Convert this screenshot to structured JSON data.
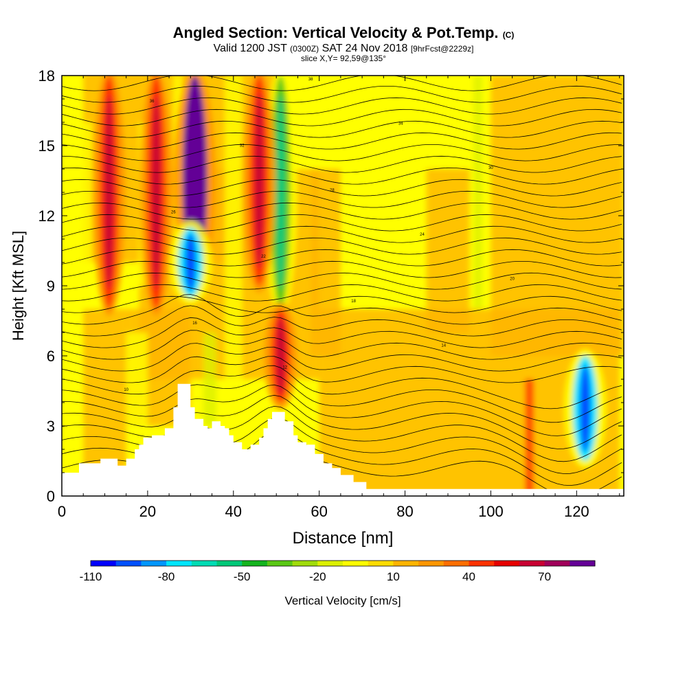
{
  "title": {
    "main": "Angled Section: Vertical Velocity & Pot.Temp.",
    "main_suffix": "(C)",
    "valid_prefix": "Valid 1200 JST",
    "valid_utc": "(0300Z)",
    "valid_date": "SAT 24 Nov 2018",
    "forecast": "[9hrFcst@2229z]",
    "slice": "slice X,Y= 92,59@135°"
  },
  "chart_data": {
    "type": "heatmap",
    "xlabel": "Distance [nm]",
    "ylabel": "Height [Kft MSL]",
    "xlim": [
      0,
      131
    ],
    "ylim": [
      0,
      18
    ],
    "x_ticks": [
      0,
      20,
      40,
      60,
      80,
      100,
      120
    ],
    "y_ticks": [
      0,
      3,
      6,
      9,
      12,
      15,
      18
    ],
    "colorbar": {
      "label": "Vertical Velocity [cm/s]",
      "min": -110,
      "max": 90,
      "step": 10,
      "tick_labels": [
        "-110",
        "-80",
        "-50",
        "-20",
        "10",
        "40",
        "70"
      ],
      "colors": [
        "#0000ff",
        "#0050ff",
        "#0096ff",
        "#00e6ff",
        "#00dcb4",
        "#00c878",
        "#14b41e",
        "#5ac814",
        "#a0dc0a",
        "#dcf000",
        "#ffff00",
        "#ffdc00",
        "#ffb400",
        "#ff9600",
        "#ff6e00",
        "#ff3200",
        "#e60000",
        "#c80032",
        "#a0005a",
        "#640096"
      ]
    },
    "features": [
      {
        "name": "updraft",
        "x": 11,
        "y_range": [
          8,
          18
        ],
        "value": 40
      },
      {
        "name": "updraft",
        "x": 22,
        "y_range": [
          8,
          18
        ],
        "value": 40
      },
      {
        "name": "updraft",
        "x": 31,
        "y_range": [
          9,
          18
        ],
        "value": 80
      },
      {
        "name": "downdraft",
        "x": 30,
        "y_range": [
          8.5,
          11.5
        ],
        "value": -80
      },
      {
        "name": "downdraft",
        "x": 51,
        "y_range": [
          8,
          18
        ],
        "value": -40
      },
      {
        "name": "updraft",
        "x": 51,
        "y_range": [
          4,
          8
        ],
        "value": 40
      },
      {
        "name": "updraft",
        "x": 46,
        "y_range": [
          9,
          18
        ],
        "value": 40
      },
      {
        "name": "downdraft",
        "x": 122,
        "y_range": [
          1.5,
          6
        ],
        "value": -80
      }
    ],
    "isentropes": {
      "unit": "C",
      "labels": [
        "10",
        "12",
        "14",
        "16",
        "18",
        "20",
        "22",
        "24",
        "26",
        "28",
        "30",
        "32",
        "34",
        "36",
        "38"
      ]
    },
    "terrain": [
      [
        0,
        1
      ],
      [
        4,
        1
      ],
      [
        4,
        1.4
      ],
      [
        9,
        1.4
      ],
      [
        9,
        1.6
      ],
      [
        13,
        1.6
      ],
      [
        13,
        1.3
      ],
      [
        15,
        1.3
      ],
      [
        15,
        1.6
      ],
      [
        17,
        1.6
      ],
      [
        17,
        2
      ],
      [
        18,
        2
      ],
      [
        18,
        2.2
      ],
      [
        19,
        2.2
      ],
      [
        19,
        2.5
      ],
      [
        21,
        2.5
      ],
      [
        21,
        2.6
      ],
      [
        24,
        2.6
      ],
      [
        24,
        2.9
      ],
      [
        26,
        2.9
      ],
      [
        26,
        3.8
      ],
      [
        27,
        3.8
      ],
      [
        27,
        4.8
      ],
      [
        30,
        4.8
      ],
      [
        30,
        3.8
      ],
      [
        31,
        3.8
      ],
      [
        31,
        3.3
      ],
      [
        33,
        3.3
      ],
      [
        33,
        3.0
      ],
      [
        34,
        3.0
      ],
      [
        34,
        2.9
      ],
      [
        35,
        2.9
      ],
      [
        35,
        3.2
      ],
      [
        37,
        3.2
      ],
      [
        37,
        3.0
      ],
      [
        38,
        3.0
      ],
      [
        38,
        2.9
      ],
      [
        39,
        2.9
      ],
      [
        39,
        2.6
      ],
      [
        40,
        2.6
      ],
      [
        40,
        2.3
      ],
      [
        42,
        2.3
      ],
      [
        42,
        2.0
      ],
      [
        44,
        2.0
      ],
      [
        44,
        2.2
      ],
      [
        46,
        2.2
      ],
      [
        46,
        2.5
      ],
      [
        47,
        2.5
      ],
      [
        47,
        2.9
      ],
      [
        48,
        2.9
      ],
      [
        48,
        3.3
      ],
      [
        49,
        3.3
      ],
      [
        49,
        3.6
      ],
      [
        52,
        3.6
      ],
      [
        52,
        3.2
      ],
      [
        54,
        3.2
      ],
      [
        54,
        2.6
      ],
      [
        55,
        2.6
      ],
      [
        55,
        2.3
      ],
      [
        57,
        2.3
      ],
      [
        57,
        2.2
      ],
      [
        59,
        2.2
      ],
      [
        59,
        1.8
      ],
      [
        61,
        1.8
      ],
      [
        61,
        1.4
      ],
      [
        63,
        1.4
      ],
      [
        63,
        1.2
      ],
      [
        65,
        1.2
      ],
      [
        65,
        0.9
      ],
      [
        68,
        0.9
      ],
      [
        68,
        0.6
      ],
      [
        71,
        0.6
      ],
      [
        71,
        0.3
      ],
      [
        131,
        0.3
      ]
    ]
  }
}
